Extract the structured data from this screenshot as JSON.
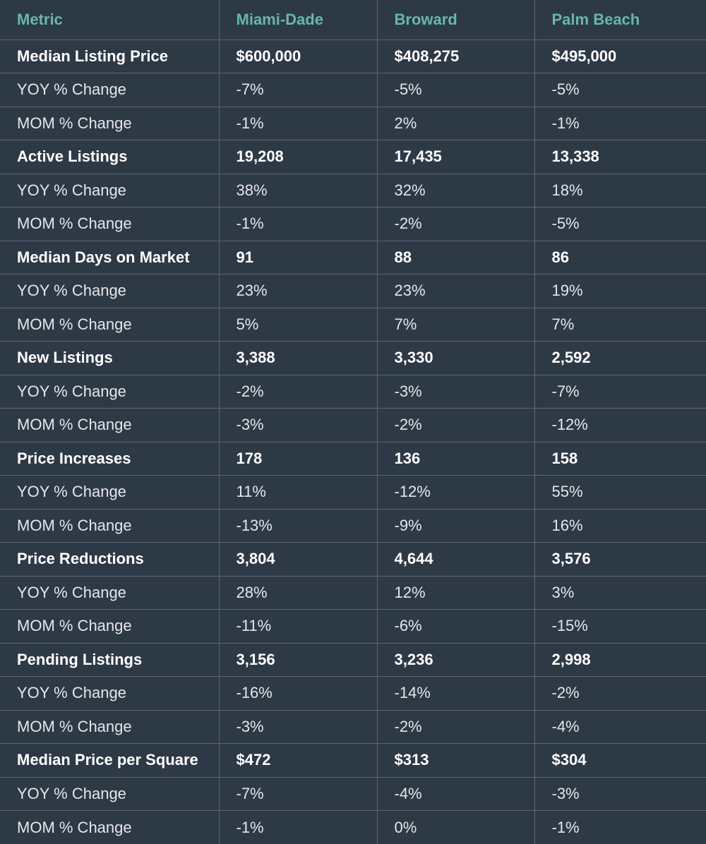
{
  "chart_data": {
    "type": "table",
    "columns": [
      "Metric",
      "Miami-Dade",
      "Broward",
      "Palm Beach"
    ],
    "header_color": "#66b7ac",
    "background_color": "#2e3946",
    "rows": [
      {
        "label": "Median Listing Price",
        "bold": true,
        "values": [
          "$600,000",
          "$408,275",
          "$495,000"
        ]
      },
      {
        "label": "YOY % Change",
        "bold": false,
        "values": [
          "-7%",
          "-5%",
          "-5%"
        ]
      },
      {
        "label": "MOM % Change",
        "bold": false,
        "values": [
          "-1%",
          "2%",
          "-1%"
        ]
      },
      {
        "label": "Active Listings",
        "bold": true,
        "values": [
          "19,208",
          "17,435",
          "13,338"
        ]
      },
      {
        "label": "YOY % Change",
        "bold": false,
        "values": [
          "38%",
          "32%",
          "18%"
        ]
      },
      {
        "label": "MOM % Change",
        "bold": false,
        "values": [
          "-1%",
          "-2%",
          "-5%"
        ]
      },
      {
        "label": "Median Days on Market",
        "bold": true,
        "values": [
          "91",
          "88",
          "86"
        ]
      },
      {
        "label": "YOY % Change",
        "bold": false,
        "values": [
          "23%",
          "23%",
          "19%"
        ]
      },
      {
        "label": "MOM % Change",
        "bold": false,
        "values": [
          "5%",
          "7%",
          "7%"
        ]
      },
      {
        "label": "New Listings",
        "bold": true,
        "values": [
          "3,388",
          "3,330",
          "2,592"
        ]
      },
      {
        "label": "YOY % Change",
        "bold": false,
        "values": [
          "-2%",
          "-3%",
          "-7%"
        ]
      },
      {
        "label": "MOM % Change",
        "bold": false,
        "values": [
          "-3%",
          "-2%",
          "-12%"
        ]
      },
      {
        "label": "Price Increases",
        "bold": true,
        "values": [
          "178",
          "136",
          "158"
        ]
      },
      {
        "label": "YOY % Change",
        "bold": false,
        "values": [
          "11%",
          "-12%",
          "55%"
        ]
      },
      {
        "label": "MOM % Change",
        "bold": false,
        "values": [
          "-13%",
          "-9%",
          "16%"
        ]
      },
      {
        "label": "Price Reductions",
        "bold": true,
        "values": [
          "3,804",
          "4,644",
          "3,576"
        ]
      },
      {
        "label": "YOY % Change",
        "bold": false,
        "values": [
          "28%",
          "12%",
          "3%"
        ]
      },
      {
        "label": "MOM % Change",
        "bold": false,
        "values": [
          "-11%",
          "-6%",
          "-15%"
        ]
      },
      {
        "label": "Pending Listings",
        "bold": true,
        "values": [
          "3,156",
          "3,236",
          "2,998"
        ]
      },
      {
        "label": "YOY % Change",
        "bold": false,
        "values": [
          "-16%",
          "-14%",
          "-2%"
        ]
      },
      {
        "label": "MOM % Change",
        "bold": false,
        "values": [
          "-3%",
          "-2%",
          "-4%"
        ]
      },
      {
        "label": "Median Price per Square",
        "bold": true,
        "values": [
          "$472",
          "$313",
          "$304"
        ]
      },
      {
        "label": "YOY % Change",
        "bold": false,
        "values": [
          "-7%",
          "-4%",
          "-3%"
        ]
      },
      {
        "label": "MOM % Change",
        "bold": false,
        "values": [
          "-1%",
          "0%",
          "-1%"
        ]
      }
    ]
  }
}
